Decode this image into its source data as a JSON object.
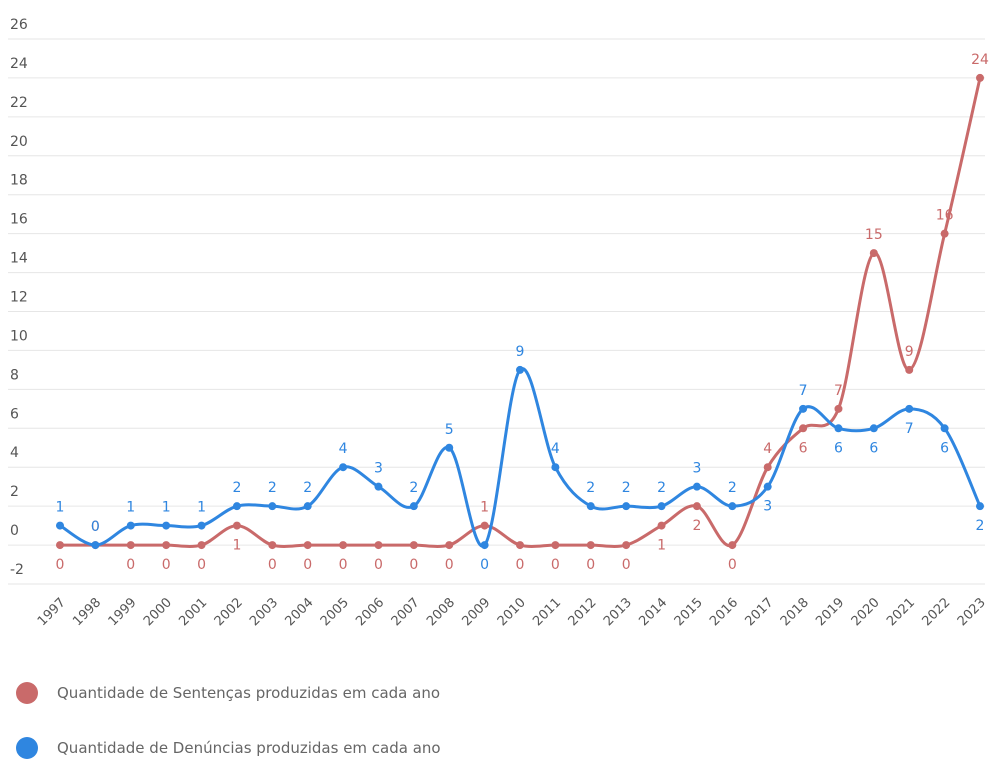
{
  "chart_data": {
    "type": "line",
    "categories": [
      "1997",
      "1998",
      "1999",
      "2000",
      "2001",
      "2002",
      "2003",
      "2004",
      "2005",
      "2006",
      "2007",
      "2008",
      "2009",
      "2010",
      "2011",
      "2012",
      "2013",
      "2014",
      "2015",
      "2016",
      "2017",
      "2018",
      "2019",
      "2020",
      "2021",
      "2022",
      "2023"
    ],
    "series": [
      {
        "name": "Quantidade de Sentenças produzidas em cada ano",
        "color": "#c96a6a",
        "values": [
          0,
          0,
          0,
          0,
          0,
          1,
          0,
          0,
          0,
          0,
          0,
          0,
          1,
          0,
          0,
          0,
          0,
          1,
          2,
          0,
          4,
          6,
          7,
          15,
          9,
          16,
          24
        ]
      },
      {
        "name": "Quantidade de Denúncias produzidas em cada ano",
        "color": "#2f86e0",
        "values": [
          1,
          0,
          1,
          1,
          1,
          2,
          2,
          2,
          4,
          3,
          2,
          5,
          0,
          9,
          4,
          2,
          2,
          2,
          3,
          2,
          3,
          7,
          6,
          6,
          7,
          6,
          2
        ]
      }
    ],
    "ylim": [
      -2,
      26
    ],
    "yticks": [
      -2,
      0,
      2,
      4,
      6,
      8,
      10,
      12,
      14,
      16,
      18,
      20,
      22,
      24,
      26
    ],
    "grid": true
  }
}
